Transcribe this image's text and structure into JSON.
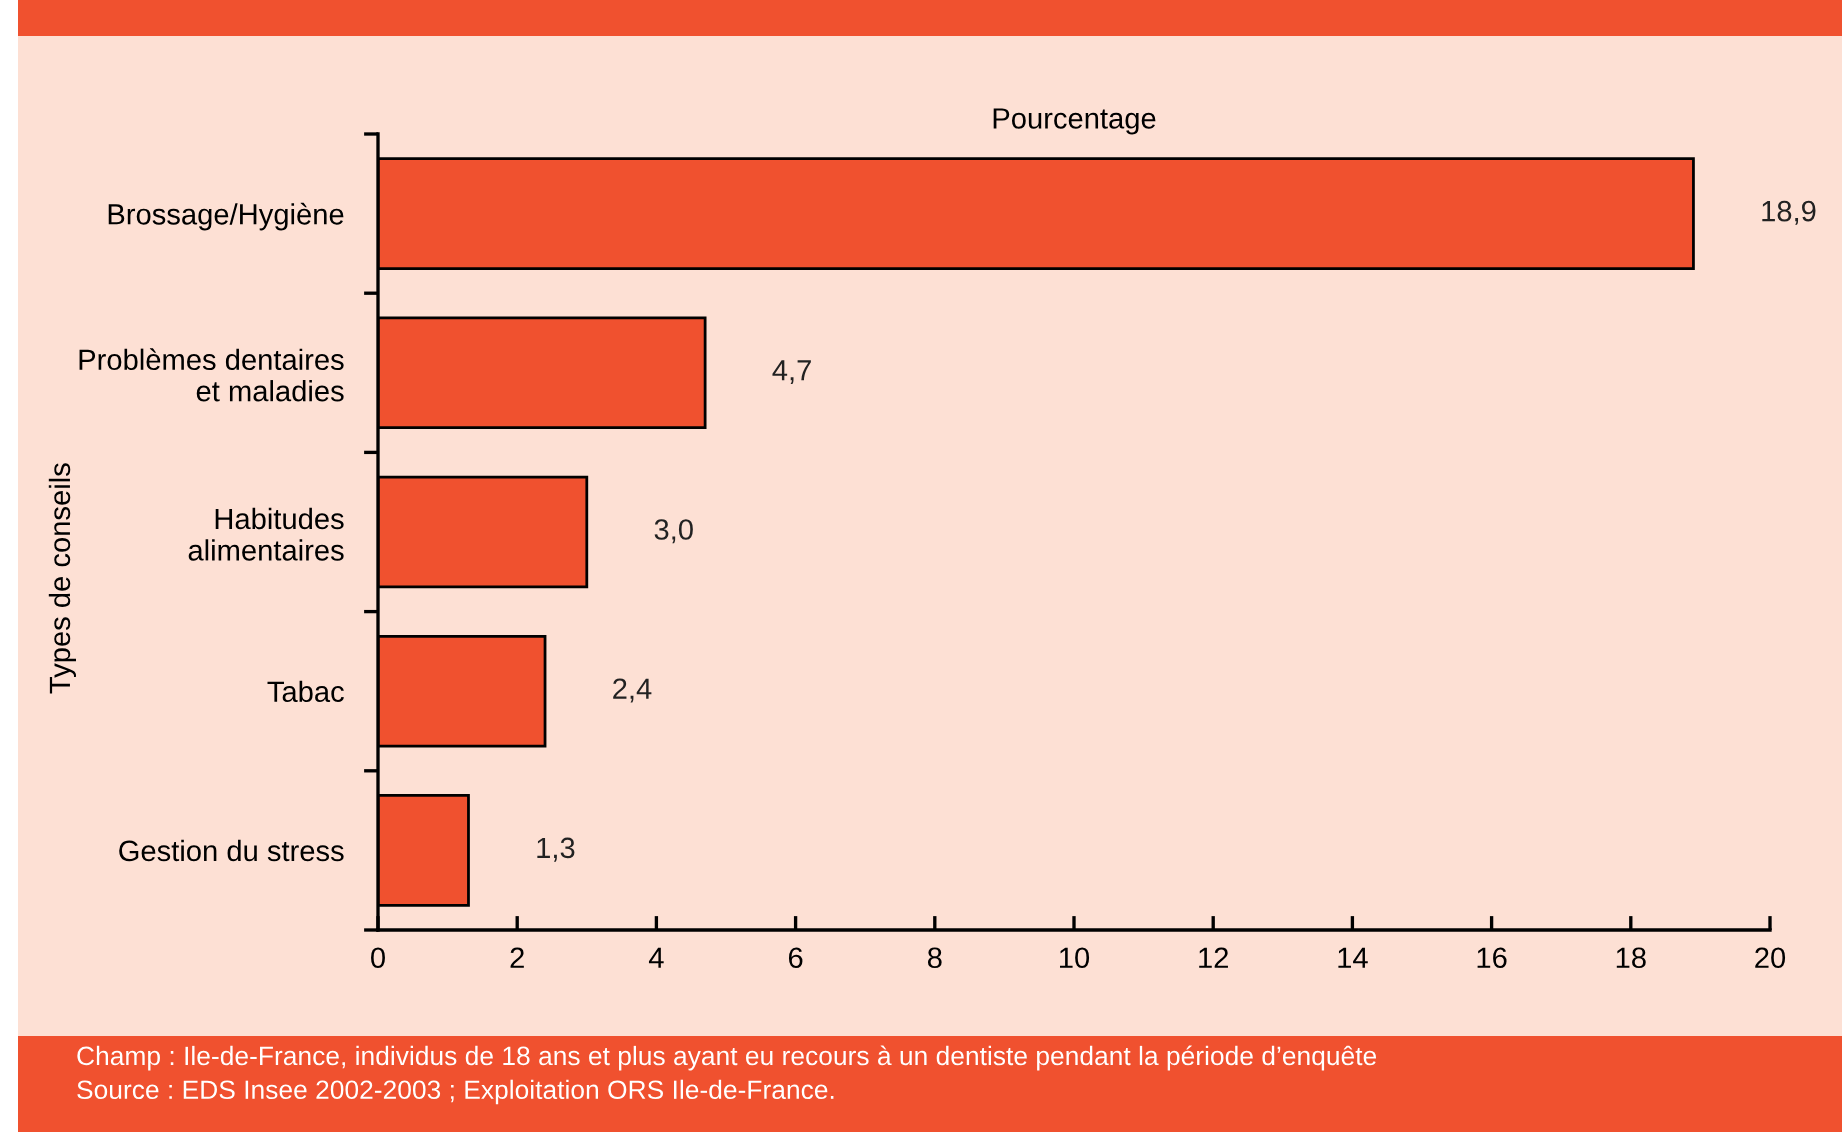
{
  "chart_data": {
    "type": "bar",
    "orientation": "horizontal",
    "categories": [
      "Brossage/Hygiène",
      "Problèmes dentaires\net maladies",
      "Habitudes\nalimentaires",
      "Tabac",
      "Gestion du stress"
    ],
    "values": [
      18.9,
      4.7,
      3.0,
      2.4,
      1.3
    ],
    "value_labels": [
      "18,9",
      "4,7",
      "3,0",
      "2,4",
      "1,3"
    ],
    "color": "#f0512f",
    "xlabel": "Pourcentage",
    "ylabel": "Types de conseils",
    "xlim": [
      0,
      20
    ],
    "xticks": [
      0,
      2,
      4,
      6,
      8,
      10,
      12,
      14,
      16,
      18,
      20
    ],
    "grid": false,
    "legend": false,
    "annotations": [
      "Champ : Ile-de-France, individus de 18 ans et plus ayant eu recours à un dentiste pendant la période d’enquête",
      "Source : EDS Insee 2002-2003 ; Exploitation ORS Ile-de-France."
    ]
  }
}
